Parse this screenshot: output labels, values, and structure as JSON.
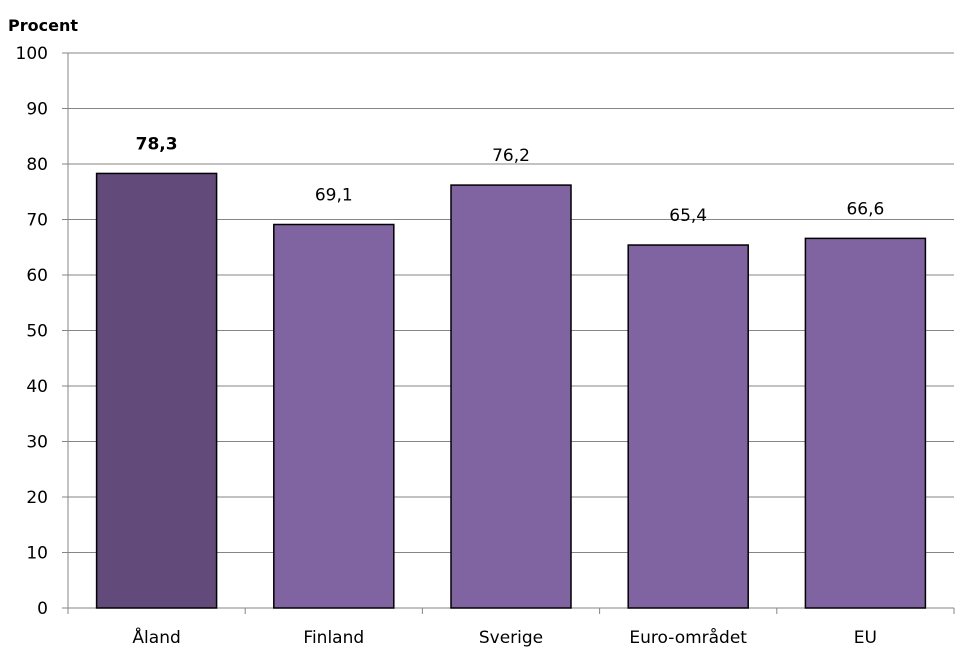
{
  "chart_data": {
    "type": "bar",
    "ylabel": "Procent",
    "ylim": [
      0,
      100
    ],
    "yticks": [
      0,
      10,
      20,
      30,
      40,
      50,
      60,
      70,
      80,
      90,
      100
    ],
    "categories": [
      "Åland",
      "Finland",
      "Sverige",
      "Euro-området",
      "EU"
    ],
    "values": [
      78.3,
      69.1,
      76.2,
      65.4,
      66.6
    ],
    "value_labels": [
      "78,3",
      "69,1",
      "76,2",
      "65,4",
      "66,6"
    ],
    "bold_labels": [
      "78,3"
    ],
    "grid": true,
    "legend": "none",
    "colors": {
      "highlight": "#624A7B",
      "bar": "#8064A2",
      "grid": "#868686",
      "bar_border": "#000000"
    },
    "highlight_categories": [
      "Åland"
    ]
  }
}
